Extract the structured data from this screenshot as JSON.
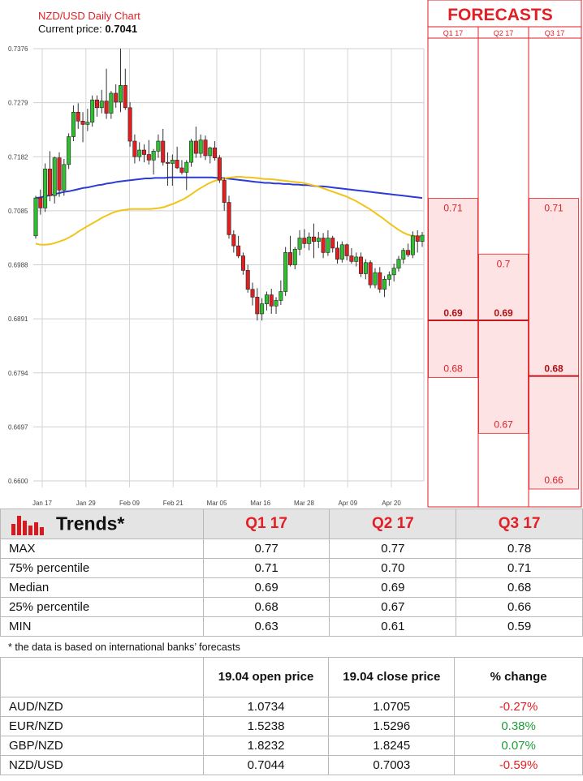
{
  "header": {
    "chart_title": "NZD/USD Daily Chart",
    "current_price_label": "Current price: ",
    "current_price_value": "0.7041"
  },
  "forecast_panel": {
    "title": "FORECASTS",
    "quarters": [
      "Q1 17",
      "Q2 17",
      "Q3 17"
    ],
    "color": "#e31e24",
    "columns": [
      {
        "quarter": "Q1 17",
        "high": 0.71,
        "median": 0.69,
        "low": 0.68,
        "labels": [
          "0.71",
          "0.69",
          "0.68"
        ]
      },
      {
        "quarter": "Q2 17",
        "high": 0.7,
        "median": 0.69,
        "low": 0.67,
        "labels": [
          "0.7",
          "0.69",
          "0.67"
        ]
      },
      {
        "quarter": "Q3 17",
        "high": 0.71,
        "median": 0.68,
        "low": 0.66,
        "labels": [
          "0.71",
          "0.68",
          "0.66"
        ]
      }
    ]
  },
  "chart_data": {
    "type": "candlestick",
    "title": "NZD/USD Daily Chart",
    "ylim": [
      0.66,
      0.7376
    ],
    "y_ticks": [
      "0.7376",
      "0.7279",
      "0.7182",
      "0.7085",
      "0.6988",
      "0.6891",
      "0.6794",
      "0.6697",
      "0.6600"
    ],
    "x_ticks": [
      "Jan 17",
      "Jan 29",
      "Feb 09",
      "Feb 21",
      "Mar 05",
      "Mar 16",
      "Mar 28",
      "Apr 09",
      "Apr 20"
    ],
    "grid": true,
    "up_color": "#2fbf2f",
    "down_color": "#e02020",
    "candles": [
      [
        0.704,
        0.7112,
        0.7035,
        0.7108
      ],
      [
        0.7108,
        0.7123,
        0.7078,
        0.709
      ],
      [
        0.709,
        0.717,
        0.7083,
        0.716
      ],
      [
        0.716,
        0.7192,
        0.7102,
        0.7112
      ],
      [
        0.7112,
        0.7182,
        0.7098,
        0.718
      ],
      [
        0.718,
        0.719,
        0.711,
        0.7122
      ],
      [
        0.7122,
        0.7178,
        0.7112,
        0.7168
      ],
      [
        0.7168,
        0.7224,
        0.716,
        0.7218
      ],
      [
        0.7218,
        0.7274,
        0.721,
        0.7262
      ],
      [
        0.7262,
        0.7278,
        0.7232,
        0.7246
      ],
      [
        0.7246,
        0.7262,
        0.7208,
        0.724
      ],
      [
        0.724,
        0.7268,
        0.7228,
        0.7244
      ],
      [
        0.7244,
        0.7292,
        0.7236,
        0.7284
      ],
      [
        0.7284,
        0.7292,
        0.7254,
        0.727
      ],
      [
        0.727,
        0.7302,
        0.726,
        0.7282
      ],
      [
        0.7282,
        0.734,
        0.725,
        0.726
      ],
      [
        0.726,
        0.73,
        0.725,
        0.7296
      ],
      [
        0.7296,
        0.7312,
        0.727,
        0.728
      ],
      [
        0.728,
        0.7376,
        0.7262,
        0.731
      ],
      [
        0.731,
        0.734,
        0.7266,
        0.727
      ],
      [
        0.727,
        0.728,
        0.72,
        0.721
      ],
      [
        0.721,
        0.7222,
        0.717,
        0.7182
      ],
      [
        0.7182,
        0.7208,
        0.7174,
        0.7194
      ],
      [
        0.7194,
        0.7204,
        0.7172,
        0.7186
      ],
      [
        0.7186,
        0.7212,
        0.7168,
        0.7176
      ],
      [
        0.7176,
        0.7196,
        0.715,
        0.7192
      ],
      [
        0.7192,
        0.7222,
        0.718,
        0.721
      ],
      [
        0.721,
        0.7232,
        0.7166,
        0.7172
      ],
      [
        0.7172,
        0.719,
        0.713,
        0.717
      ],
      [
        0.717,
        0.7186,
        0.713,
        0.7176
      ],
      [
        0.7176,
        0.72,
        0.716,
        0.7162
      ],
      [
        0.7162,
        0.7176,
        0.715,
        0.7154
      ],
      [
        0.7154,
        0.7176,
        0.7122,
        0.7172
      ],
      [
        0.7172,
        0.7214,
        0.7164,
        0.721
      ],
      [
        0.721,
        0.7236,
        0.718,
        0.7188
      ],
      [
        0.7188,
        0.7222,
        0.718,
        0.7212
      ],
      [
        0.7212,
        0.722,
        0.7176,
        0.7184
      ],
      [
        0.7184,
        0.72,
        0.717,
        0.7198
      ],
      [
        0.7198,
        0.721,
        0.7175,
        0.718
      ],
      [
        0.718,
        0.7185,
        0.7135,
        0.714
      ],
      [
        0.714,
        0.7145,
        0.7085,
        0.71
      ],
      [
        0.71,
        0.7112,
        0.7035,
        0.7042
      ],
      [
        0.7042,
        0.705,
        0.701,
        0.7022
      ],
      [
        0.7022,
        0.704,
        0.7,
        0.7004
      ],
      [
        0.7004,
        0.701,
        0.697,
        0.6978
      ],
      [
        0.6978,
        0.6988,
        0.6938,
        0.6944
      ],
      [
        0.6944,
        0.6956,
        0.6915,
        0.693
      ],
      [
        0.693,
        0.6946,
        0.6888,
        0.69
      ],
      [
        0.69,
        0.6928,
        0.6888,
        0.6918
      ],
      [
        0.6918,
        0.694,
        0.6906,
        0.6934
      ],
      [
        0.6934,
        0.6945,
        0.69,
        0.6914
      ],
      [
        0.6914,
        0.693,
        0.69,
        0.6924
      ],
      [
        0.6924,
        0.696,
        0.6916,
        0.694
      ],
      [
        0.694,
        0.702,
        0.6932,
        0.701
      ],
      [
        0.701,
        0.704,
        0.6985,
        0.6988
      ],
      [
        0.6988,
        0.702,
        0.698,
        0.7016
      ],
      [
        0.7016,
        0.705,
        0.7005,
        0.7036
      ],
      [
        0.7036,
        0.7052,
        0.7018,
        0.7026
      ],
      [
        0.7026,
        0.7046,
        0.7014,
        0.7038
      ],
      [
        0.7038,
        0.7062,
        0.7,
        0.703
      ],
      [
        0.703,
        0.7047,
        0.7018,
        0.7036
      ],
      [
        0.7036,
        0.7045,
        0.7,
        0.701
      ],
      [
        0.701,
        0.705,
        0.7004,
        0.7036
      ],
      [
        0.7036,
        0.704,
        0.701,
        0.7018
      ],
      [
        0.7018,
        0.703,
        0.699,
        0.6998
      ],
      [
        0.6998,
        0.703,
        0.6992,
        0.7024
      ],
      [
        0.7024,
        0.7026,
        0.6996,
        0.7004
      ],
      [
        0.7004,
        0.7018,
        0.699,
        0.6994
      ],
      [
        0.6994,
        0.701,
        0.6985,
        0.7002
      ],
      [
        0.7002,
        0.701,
        0.6966,
        0.6972
      ],
      [
        0.6972,
        0.6998,
        0.6962,
        0.6992
      ],
      [
        0.6992,
        0.6996,
        0.6946,
        0.6952
      ],
      [
        0.6952,
        0.6982,
        0.6946,
        0.6974
      ],
      [
        0.6974,
        0.6984,
        0.6938,
        0.6944
      ],
      [
        0.6944,
        0.6968,
        0.693,
        0.6962
      ],
      [
        0.6962,
        0.6976,
        0.695,
        0.697
      ],
      [
        0.697,
        0.699,
        0.6958,
        0.6982
      ],
      [
        0.6982,
        0.7004,
        0.6976,
        0.6998
      ],
      [
        0.6998,
        0.7018,
        0.699,
        0.7014
      ],
      [
        0.7014,
        0.7026,
        0.7002,
        0.7006
      ],
      [
        0.7006,
        0.7048,
        0.7,
        0.704
      ],
      [
        0.704,
        0.705,
        0.701,
        0.703
      ],
      [
        0.703,
        0.7047,
        0.702,
        0.7041
      ]
    ],
    "series": [
      {
        "color": "#2b3bd6",
        "values": [
          0.7108,
          0.7109,
          0.7111,
          0.7113,
          0.7115,
          0.7117,
          0.7119,
          0.712,
          0.7122,
          0.7124,
          0.7126,
          0.7127,
          0.7129,
          0.7131,
          0.7132,
          0.7134,
          0.7135,
          0.7137,
          0.7138,
          0.7139,
          0.714,
          0.7141,
          0.7142,
          0.7143,
          0.7143,
          0.7144,
          0.7144,
          0.7144,
          0.7145,
          0.7145,
          0.7145,
          0.7145,
          0.7145,
          0.7145,
          0.7145,
          0.7145,
          0.7145,
          0.7145,
          0.7144,
          0.7144,
          0.7143,
          0.7142,
          0.7141,
          0.714,
          0.7139,
          0.7138,
          0.7137,
          0.7136,
          0.7135,
          0.7135,
          0.7134,
          0.7134,
          0.7133,
          0.7133,
          0.7132,
          0.7132,
          0.7131,
          0.7131,
          0.713,
          0.7129,
          0.7129,
          0.7128,
          0.7127,
          0.7126,
          0.7125,
          0.7124,
          0.7123,
          0.7122,
          0.7121,
          0.712,
          0.7119,
          0.7118,
          0.7117,
          0.7116,
          0.7115,
          0.7114,
          0.7113,
          0.7112,
          0.7111,
          0.711,
          0.7109,
          0.7108
        ]
      },
      {
        "color": "#f0c419",
        "values": [
          0.7026,
          0.7024,
          0.7024,
          0.7025,
          0.7027,
          0.703,
          0.7033,
          0.7037,
          0.7042,
          0.7048,
          0.7053,
          0.7058,
          0.7063,
          0.7068,
          0.7073,
          0.7077,
          0.7081,
          0.7084,
          0.7086,
          0.7087,
          0.7088,
          0.7088,
          0.7088,
          0.7088,
          0.7088,
          0.7089,
          0.709,
          0.7092,
          0.7095,
          0.7098,
          0.7102,
          0.7106,
          0.7111,
          0.7117,
          0.7123,
          0.7128,
          0.7133,
          0.7137,
          0.714,
          0.7142,
          0.7144,
          0.7145,
          0.7146,
          0.7146,
          0.7145,
          0.7145,
          0.7144,
          0.7143,
          0.7142,
          0.7142,
          0.7141,
          0.714,
          0.7139,
          0.7138,
          0.7137,
          0.7136,
          0.7135,
          0.7133,
          0.7131,
          0.7129,
          0.7126,
          0.7123,
          0.712,
          0.7117,
          0.7114,
          0.7111,
          0.7107,
          0.7103,
          0.7098,
          0.7093,
          0.7088,
          0.7082,
          0.7076,
          0.707,
          0.7063,
          0.7057,
          0.7051,
          0.7046,
          0.7042,
          0.704,
          0.7039,
          0.7038
        ]
      }
    ],
    "current_price": 0.7041
  },
  "trends": {
    "title": "Trends*",
    "columns": [
      "Q1 17",
      "Q2 17",
      "Q3 17"
    ],
    "rows": [
      {
        "label": "MAX",
        "values": [
          "0.77",
          "0.77",
          "0.78"
        ]
      },
      {
        "label": "75% percentile",
        "values": [
          "0.71",
          "0.70",
          "0.71"
        ]
      },
      {
        "label": "Median",
        "values": [
          "0.69",
          "0.69",
          "0.68"
        ]
      },
      {
        "label": "25% percentile",
        "values": [
          "0.68",
          "0.67",
          "0.66"
        ]
      },
      {
        "label": "MIN",
        "values": [
          "0.63",
          "0.61",
          "0.59"
        ]
      }
    ],
    "footnote": "* the data is based on international banks’ forecasts"
  },
  "fx_table": {
    "headers": [
      "",
      "19.04 open price",
      "19.04 close price",
      "% change"
    ],
    "rows": [
      {
        "pair": "AUD/NZD",
        "open": "1.0734",
        "close": "1.0705",
        "change": "-0.27%",
        "direction": "down"
      },
      {
        "pair": "EUR/NZD",
        "open": "1.5238",
        "close": "1.5296",
        "change": "0.38%",
        "direction": "up"
      },
      {
        "pair": "GBP/NZD",
        "open": "1.8232",
        "close": "1.8245",
        "change": "0.07%",
        "direction": "up"
      },
      {
        "pair": "NZD/USD",
        "open": "0.7044",
        "close": "0.7003",
        "change": "-0.59%",
        "direction": "down"
      }
    ],
    "colors": {
      "down": "#e31e24",
      "up": "#1f9d3a"
    }
  }
}
